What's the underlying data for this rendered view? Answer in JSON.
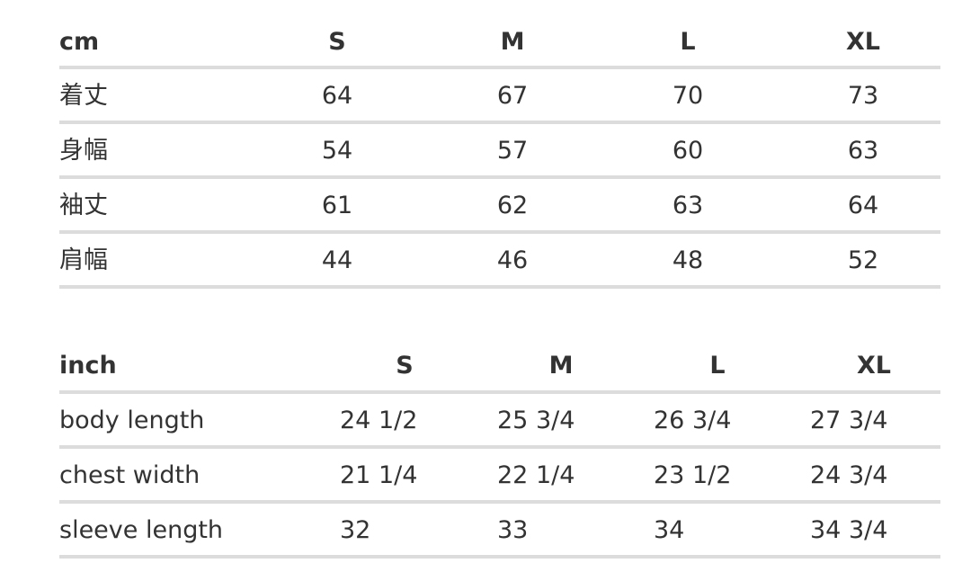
{
  "cm_table": {
    "unit": "cm",
    "sizes": [
      "S",
      "M",
      "L",
      "XL"
    ],
    "rows": [
      {
        "label": "着丈",
        "values": [
          "64",
          "67",
          "70",
          "73"
        ]
      },
      {
        "label": "身幅",
        "values": [
          "54",
          "57",
          "60",
          "63"
        ]
      },
      {
        "label": "袖丈",
        "values": [
          "61",
          "62",
          "63",
          "64"
        ]
      },
      {
        "label": "肩幅",
        "values": [
          "44",
          "46",
          "48",
          "52"
        ]
      }
    ]
  },
  "inch_table": {
    "unit": "inch",
    "sizes": [
      "S",
      "M",
      "L",
      "XL"
    ],
    "rows": [
      {
        "label": "body length",
        "values": [
          "24 1/2",
          "25 3/4",
          "26 3/4",
          "27 3/4"
        ]
      },
      {
        "label": "chest width",
        "values": [
          "21 1/4",
          "22 1/4",
          "23 1/2",
          "24 3/4"
        ]
      },
      {
        "label": "sleeve length",
        "values": [
          "32",
          "33",
          "34",
          "34 3/4"
        ]
      }
    ]
  }
}
